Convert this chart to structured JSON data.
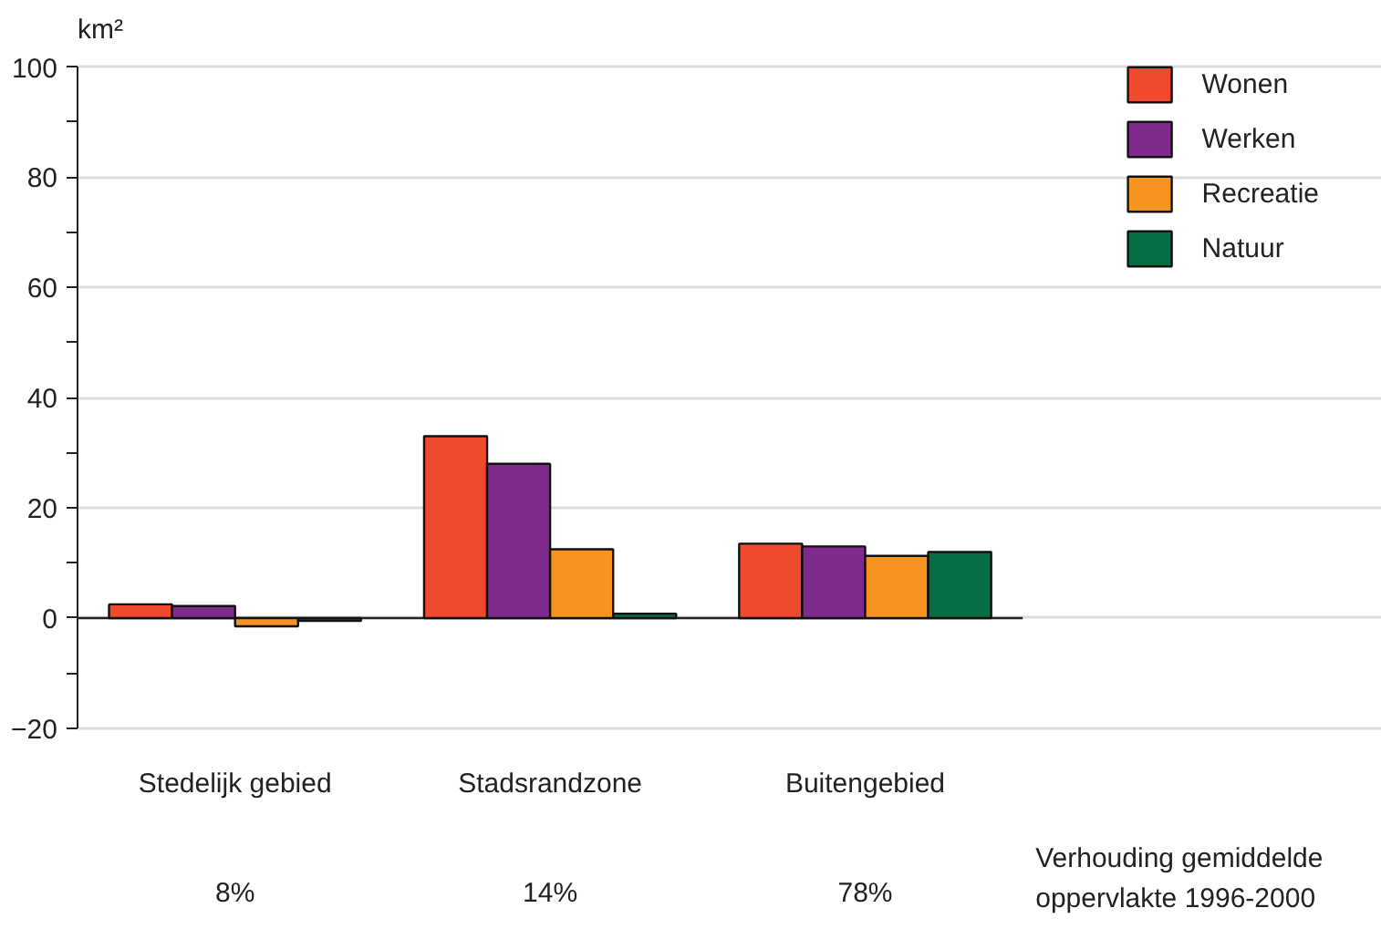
{
  "chart_data": {
    "type": "bar",
    "ylabel": "km²",
    "categories": [
      "Stedelijk gebied",
      "Stadsrandzone",
      "Buitengebied"
    ],
    "series": [
      {
        "name": "Wonen",
        "color": "#ee4a2b",
        "values": [
          2.5,
          33,
          13.5
        ]
      },
      {
        "name": "Werken",
        "color": "#812a8e",
        "values": [
          2.2,
          28,
          13
        ]
      },
      {
        "name": "Recreatie",
        "color": "#f79321",
        "values": [
          -1.5,
          12.5,
          11.3
        ]
      },
      {
        "name": "Natuur",
        "color": "#066d45",
        "values": [
          -0.5,
          0.8,
          12
        ]
      }
    ],
    "ylim": [
      -20,
      100
    ],
    "yticks": [
      -20,
      {
        "value": -10,
        "label": null
      },
      0,
      {
        "value": 10,
        "label": null
      },
      20,
      {
        "value": 30,
        "label": null
      },
      40,
      {
        "value": 50,
        "label": null
      },
      60,
      {
        "value": 70,
        "label": null
      },
      80,
      {
        "value": 90,
        "label": null
      },
      100
    ],
    "grid": "y",
    "legend": "top right",
    "annotations": [
      "8%",
      "14%",
      "78%",
      "Verhouding gemiddelde\noppervlakte 1996-2000"
    ]
  }
}
